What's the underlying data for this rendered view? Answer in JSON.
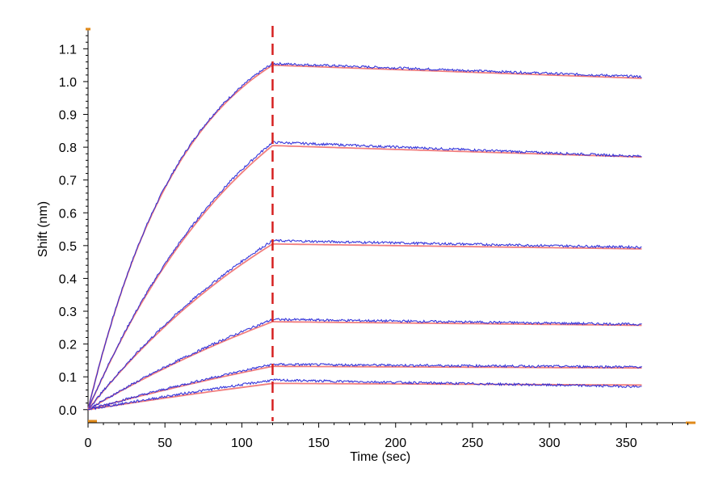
{
  "chart_data": {
    "type": "line",
    "title": "",
    "xlabel": "Time (sec)",
    "ylabel": "Shift (nm)",
    "xlim": [
      0,
      395
    ],
    "ylim": [
      -0.04,
      1.16
    ],
    "x_ticks": [
      0,
      50,
      100,
      150,
      200,
      250,
      300,
      350
    ],
    "y_ticks": [
      0.0,
      0.1,
      0.2,
      0.3,
      0.4,
      0.5,
      0.6,
      0.7,
      0.8,
      0.9,
      1.0,
      1.1
    ],
    "x_tick_labels": [
      "0",
      "50",
      "100",
      "150",
      "200",
      "250",
      "300",
      "350"
    ],
    "y_tick_labels": [
      "0.0",
      "0.1",
      "0.2",
      "0.3",
      "0.4",
      "0.5",
      "0.6",
      "0.7",
      "0.8",
      "0.9",
      "1.0",
      "1.1"
    ],
    "association_end_marker": 120,
    "x_end": 360,
    "grid": false,
    "legend": "none",
    "series_styles": {
      "measured_color": "#2a2ad8",
      "fit_color": "#f07070",
      "marker_color": "#d62020",
      "axis_accent_color": "#e08a1a"
    },
    "curves": [
      {
        "measured": {
          "peak": 1.055,
          "end": 1.015,
          "shape": 1.9
        },
        "fit": {
          "peak": 1.05,
          "end": 1.01,
          "shape": 1.9
        }
      },
      {
        "measured": {
          "peak": 0.815,
          "end": 0.772,
          "shape": 1.05
        },
        "fit": {
          "peak": 0.805,
          "end": 0.77,
          "shape": 1.05
        }
      },
      {
        "measured": {
          "peak": 0.515,
          "end": 0.495,
          "shape": 0.7
        },
        "fit": {
          "peak": 0.505,
          "end": 0.49,
          "shape": 0.7
        }
      },
      {
        "measured": {
          "peak": 0.275,
          "end": 0.26,
          "shape": 0.45
        },
        "fit": {
          "peak": 0.268,
          "end": 0.257,
          "shape": 0.45
        }
      },
      {
        "measured": {
          "peak": 0.138,
          "end": 0.13,
          "shape": 0.3
        },
        "fit": {
          "peak": 0.132,
          "end": 0.127,
          "shape": 0.3
        }
      },
      {
        "measured": {
          "peak": 0.09,
          "end": 0.07,
          "shape": 0.2
        },
        "fit": {
          "peak": 0.08,
          "end": 0.075,
          "shape": 0.2
        }
      }
    ]
  }
}
